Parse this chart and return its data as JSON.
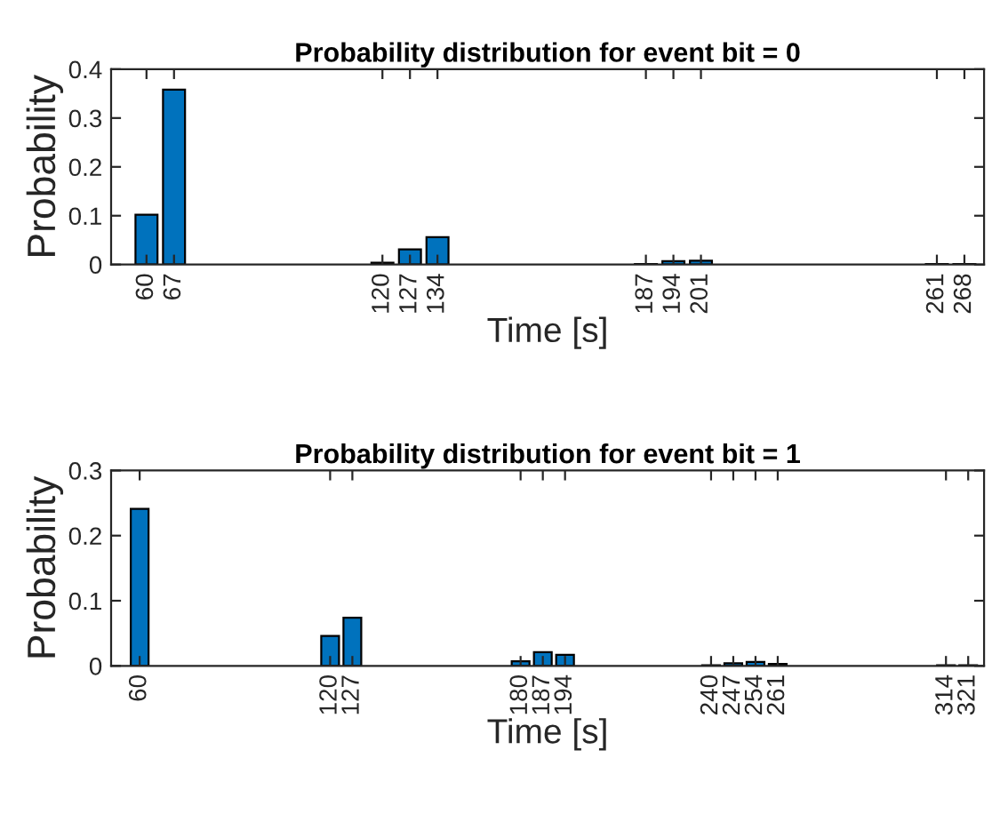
{
  "chart_data": [
    {
      "type": "bar",
      "title": "Probability distribution for event bit = 0",
      "xlabel": "Time [s]",
      "ylabel": "Probability",
      "x": [
        60,
        67,
        120,
        127,
        134,
        187,
        194,
        201,
        261,
        268
      ],
      "series": [
        {
          "color": "#0072bd",
          "values": [
            0.102,
            0.358,
            0.004,
            0.031,
            0.056,
            0.001,
            0.007,
            0.008,
            0.001,
            0.001
          ]
        }
      ],
      "xlim": [
        51,
        273
      ],
      "xticks": [
        60,
        67,
        120,
        127,
        134,
        187,
        194,
        201,
        261,
        268
      ],
      "ylim": [
        0,
        0.4
      ],
      "yticks": [
        0,
        0.1,
        0.2,
        0.3,
        0.4
      ],
      "grid": false,
      "legend": false
    },
    {
      "type": "bar",
      "title": "Probability distribution for event bit = 1",
      "xlabel": "Time [s]",
      "ylabel": "Probability",
      "x": [
        60,
        120,
        127,
        180,
        187,
        194,
        240,
        247,
        254,
        261,
        314,
        321
      ],
      "series": [
        {
          "color": "#0072bd",
          "values": [
            0.241,
            0.046,
            0.074,
            0.007,
            0.021,
            0.017,
            0.001,
            0.004,
            0.006,
            0.003,
            0.001,
            0.001
          ]
        }
      ],
      "xlim": [
        51,
        326
      ],
      "xticks": [
        60,
        120,
        127,
        180,
        187,
        194,
        240,
        247,
        254,
        261,
        314,
        321
      ],
      "ylim": [
        0,
        0.3
      ],
      "yticks": [
        0,
        0.1,
        0.2,
        0.3
      ],
      "grid": false,
      "legend": false
    }
  ]
}
